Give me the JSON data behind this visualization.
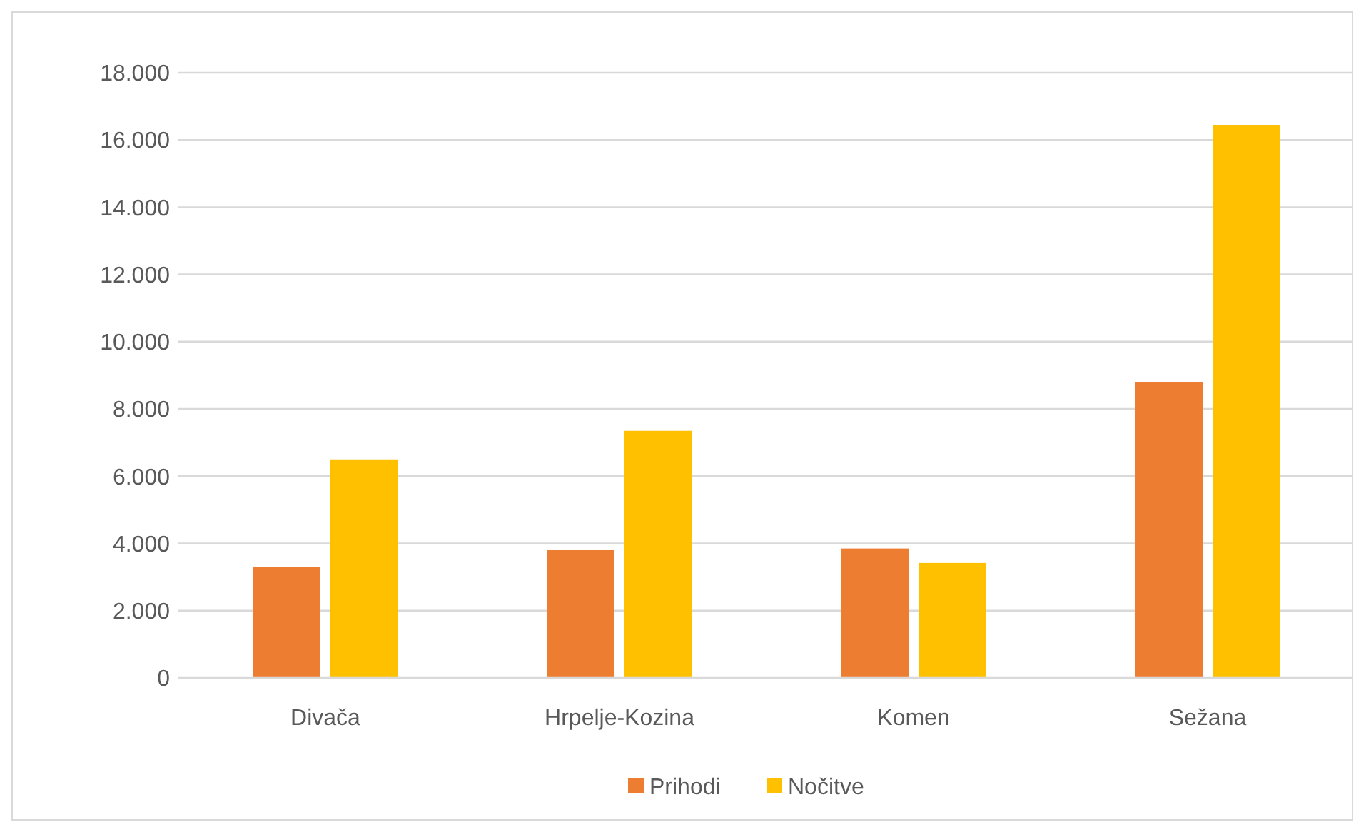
{
  "chart_data": {
    "type": "bar",
    "categories": [
      "Divača",
      "Hrpelje-Kozina",
      "Komen",
      "Sežana"
    ],
    "series": [
      {
        "name": "Prihodi",
        "color": "#ed7d31",
        "values": [
          3300,
          3800,
          3850,
          8800
        ]
      },
      {
        "name": "Nočitve",
        "color": "#ffc000",
        "values": [
          6500,
          7350,
          3420,
          16450
        ]
      }
    ],
    "ylim": [
      0,
      18000
    ],
    "yticks": [
      0,
      {
        "value": 2000,
        "label": "2.000"
      },
      {
        "value": 4000,
        "label": "4.000"
      },
      {
        "value": 6000,
        "label": "6.000"
      },
      {
        "value": 8000,
        "label": "8.000"
      },
      {
        "value": 10000,
        "label": "10.000"
      },
      {
        "value": 12000,
        "label": "12.000"
      },
      {
        "value": 14000,
        "label": "14.000"
      },
      {
        "value": 16000,
        "label": "16.000"
      },
      {
        "value": 18000,
        "label": "18.000"
      }
    ],
    "grid": "y",
    "legend": "bottom"
  }
}
